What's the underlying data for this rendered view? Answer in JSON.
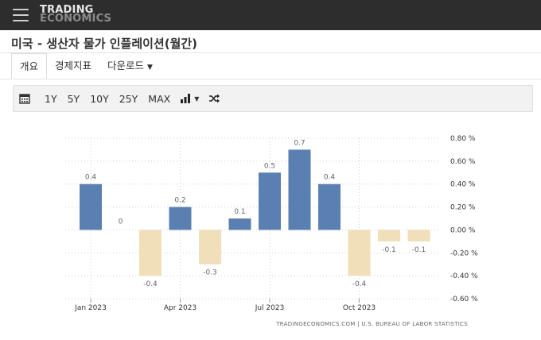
{
  "header": {
    "logo_line1": "TRADING",
    "logo_line2": "ECONOMICS",
    "menu_icon": "hamburger-menu-icon"
  },
  "page": {
    "title": "미국 - 생산자 물가 인플레이션(월간)"
  },
  "tabs": [
    {
      "label": "개요",
      "active": true
    },
    {
      "label": "경제지표",
      "active": false
    },
    {
      "label": "다운로드",
      "active": false,
      "icon": "caret-down-icon"
    }
  ],
  "toolbar": {
    "calendar_icon": "calendar-icon",
    "ranges": [
      "1Y",
      "5Y",
      "10Y",
      "25Y",
      "MAX"
    ],
    "chart_type_icon": "bar-chart-icon",
    "compare_icon": "shuffle-icon"
  },
  "chart_data": {
    "type": "bar",
    "categories": [
      "Jan 2023",
      "Feb 2023",
      "Mar 2023",
      "Apr 2023",
      "May 2023",
      "Jun 2023",
      "Jul 2023",
      "Aug 2023",
      "Sep 2023",
      "Oct 2023",
      "Nov 2023",
      "Dec 2023"
    ],
    "values": [
      0.4,
      0,
      -0.4,
      0.2,
      -0.3,
      0.1,
      0.5,
      0.7,
      0.4,
      -0.4,
      -0.1,
      -0.1
    ],
    "data_labels": [
      "0.4",
      "0",
      "-0.4",
      "0.2",
      "-0.3",
      "0.1",
      "0.5",
      "0.7",
      "0.4",
      "-0.4",
      "-0.1",
      "-0.1"
    ],
    "x_tick_labels": [
      {
        "label": "Jan 2023",
        "index": 0
      },
      {
        "label": "Apr 2023",
        "index": 3
      },
      {
        "label": "Jul 2023",
        "index": 6
      },
      {
        "label": "Oct 2023",
        "index": 9
      }
    ],
    "y_ticks": [
      0.8,
      0.6,
      0.4,
      0.2,
      0,
      -0.2,
      -0.4,
      -0.6
    ],
    "y_tick_labels": [
      "0.80 %",
      "0.60 %",
      "0.40 %",
      "0.20 %",
      "0.00 %",
      "-0.20 %",
      "-0.40 %",
      "-0.60 %"
    ],
    "ylim": [
      -0.6,
      0.8
    ],
    "y_axis_position": "right",
    "grid": true,
    "colors": {
      "positive": "#5a80b1",
      "negative": "#f0dfb8"
    },
    "source": "TRADINGECONOMICS.COM  |  U.S. BUREAU OF LABOR STATISTICS"
  }
}
